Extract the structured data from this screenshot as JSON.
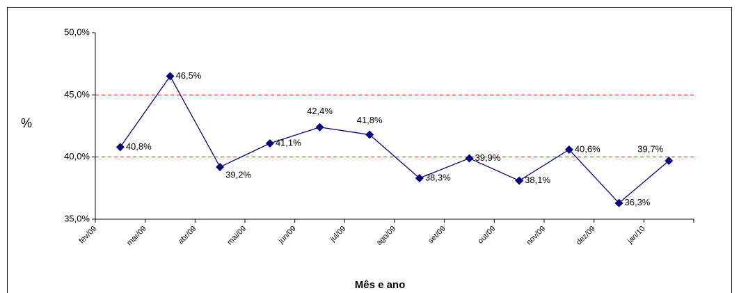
{
  "chart_data": {
    "type": "line",
    "x_label": "Mês e ano",
    "y_label": "%",
    "categories": [
      "fev/09",
      "mar/09",
      "abr/09",
      "mai/09",
      "jun/09",
      "jul/09",
      "ago/09",
      "set/09",
      "out/09",
      "nov/09",
      "dez/09",
      "jan/10"
    ],
    "series": [
      {
        "name": "%",
        "color": "#000080",
        "values": [
          40.8,
          46.5,
          39.2,
          41.1,
          42.4,
          41.8,
          38.3,
          39.9,
          38.1,
          40.6,
          36.3,
          39.7
        ],
        "value_labels": [
          "40,8%",
          "46,5%",
          "39,2%",
          "41,1%",
          "42,4%",
          "41,8%",
          "38,3%",
          "39,9%",
          "38,1%",
          "40,6%",
          "36,3%",
          "39,7%"
        ]
      }
    ],
    "ylim": [
      35,
      50
    ],
    "yticks": [
      {
        "value": 35,
        "label": "35,0%"
      },
      {
        "value": 40,
        "label": "40,0%"
      },
      {
        "value": 45,
        "label": "45,0%"
      },
      {
        "value": 50,
        "label": "50,0%"
      }
    ],
    "grid": true,
    "grid_color": "#ff0000"
  }
}
